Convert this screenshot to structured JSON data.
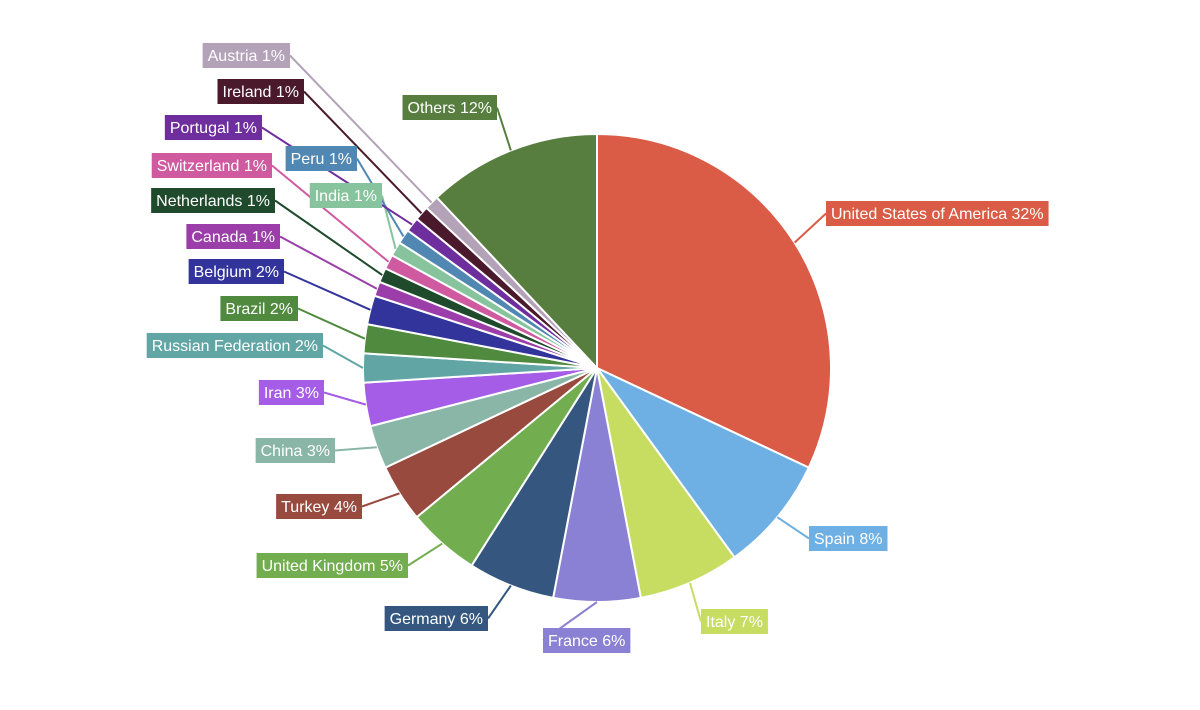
{
  "chart_data": {
    "type": "pie",
    "title": "",
    "slices": [
      {
        "name": "United States of America",
        "value": 32,
        "label": "United States of America 32%",
        "color": "#da5c47"
      },
      {
        "name": "Spain",
        "value": 8,
        "label": "Spain 8%",
        "color": "#6eb0e3"
      },
      {
        "name": "Italy",
        "value": 7,
        "label": "Italy 7%",
        "color": "#c6dd62"
      },
      {
        "name": "France",
        "value": 6,
        "label": "France 6%",
        "color": "#8b81d4"
      },
      {
        "name": "Germany",
        "value": 6,
        "label": "Germany 6%",
        "color": "#34567f"
      },
      {
        "name": "United Kingdom",
        "value": 5,
        "label": "United Kingdom 5%",
        "color": "#72ad4f"
      },
      {
        "name": "Turkey",
        "value": 4,
        "label": "Turkey 4%",
        "color": "#984a3e"
      },
      {
        "name": "China",
        "value": 3,
        "label": "China 3%",
        "color": "#89b6a6"
      },
      {
        "name": "Iran",
        "value": 3,
        "label": "Iran 3%",
        "color": "#a55de7"
      },
      {
        "name": "Russian Federation",
        "value": 2,
        "label": "Russian Federation 2%",
        "color": "#61a5a4"
      },
      {
        "name": "Brazil",
        "value": 2,
        "label": "Brazil 2%",
        "color": "#4f8a3f"
      },
      {
        "name": "Belgium",
        "value": 2,
        "label": "Belgium 2%",
        "color": "#32349c"
      },
      {
        "name": "Canada",
        "value": 1,
        "label": "Canada 1%",
        "color": "#9b3eaa"
      },
      {
        "name": "Netherlands",
        "value": 1,
        "label": "Netherlands 1%",
        "color": "#1f4a2c"
      },
      {
        "name": "Switzerland",
        "value": 1,
        "label": "Switzerland 1%",
        "color": "#cf5aa0"
      },
      {
        "name": "India",
        "value": 1,
        "label": "India 1%",
        "color": "#87c49d"
      },
      {
        "name": "Peru",
        "value": 1,
        "label": "Peru 1%",
        "color": "#5087b3"
      },
      {
        "name": "Portugal",
        "value": 1,
        "label": "Portugal 1%",
        "color": "#6f2e9d"
      },
      {
        "name": "Ireland",
        "value": 1,
        "label": "Ireland 1%",
        "color": "#4a1a2c"
      },
      {
        "name": "Austria",
        "value": 1,
        "label": "Austria 1%",
        "color": "#b3a2b8"
      },
      {
        "name": "Others",
        "value": 12,
        "label": "Others 12%",
        "color": "#577e3f"
      }
    ]
  }
}
